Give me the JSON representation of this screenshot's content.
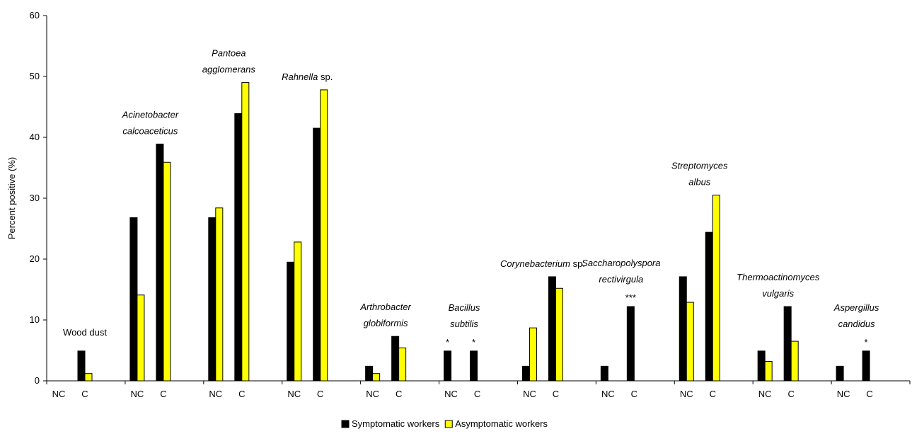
{
  "chart_data": {
    "type": "bar",
    "ylabel": "Percent positive (%)",
    "ylim": [
      0,
      60
    ],
    "yticks": [
      0,
      10,
      20,
      30,
      40,
      50,
      60
    ],
    "grid": false,
    "legend_position": "bottom",
    "colors": {
      "symptomatic": "#000000",
      "asymptomatic": "#ffff00"
    },
    "legend": [
      {
        "key": "symptomatic",
        "label": "Symptomatic workers"
      },
      {
        "key": "asymptomatic",
        "label": "Asymptomatic workers"
      }
    ],
    "series_names": [
      "Symptomatic workers",
      "Asymptomatic workers"
    ],
    "groups": [
      {
        "label": [
          {
            "text": "Wood dust",
            "italic": false
          }
        ],
        "label_anchor": "C",
        "NC": {
          "symptomatic": 0,
          "asymptomatic": 0,
          "star": ""
        },
        "C": {
          "symptomatic": 4.9,
          "asymptomatic": 1.2,
          "star": ""
        }
      },
      {
        "label": [
          {
            "text": "Acinetobacter",
            "italic": true
          },
          {
            "text": "calcoaceticus",
            "italic": true
          }
        ],
        "label_anchor": "mid",
        "NC": {
          "symptomatic": 26.8,
          "asymptomatic": 14.1,
          "star": ""
        },
        "C": {
          "symptomatic": 38.9,
          "asymptomatic": 35.9,
          "star": ""
        }
      },
      {
        "label": [
          {
            "text": "Pantoea",
            "italic": true
          },
          {
            "text": "agglomerans",
            "italic": true
          }
        ],
        "label_anchor": "mid",
        "NC": {
          "symptomatic": 26.8,
          "asymptomatic": 28.4,
          "star": ""
        },
        "C": {
          "symptomatic": 43.9,
          "asymptomatic": 49.0,
          "star": ""
        }
      },
      {
        "label": [
          {
            "text": "Rahnella",
            "italic": true,
            "suffix": " sp."
          }
        ],
        "label_anchor": "mid",
        "NC": {
          "symptomatic": 19.5,
          "asymptomatic": 22.8,
          "star": ""
        },
        "C": {
          "symptomatic": 41.5,
          "asymptomatic": 47.8,
          "star": ""
        }
      },
      {
        "label": [
          {
            "text": "Arthrobacter",
            "italic": true
          },
          {
            "text": "globiformis",
            "italic": true
          }
        ],
        "label_anchor": "mid",
        "NC": {
          "symptomatic": 2.4,
          "asymptomatic": 1.2,
          "star": ""
        },
        "C": {
          "symptomatic": 7.3,
          "asymptomatic": 5.4,
          "star": ""
        }
      },
      {
        "label": [
          {
            "text": "Bacillus",
            "italic": true
          },
          {
            "text": "subtilis",
            "italic": true
          }
        ],
        "label_anchor": "mid",
        "NC": {
          "symptomatic": 4.9,
          "asymptomatic": 0,
          "star": "*"
        },
        "C": {
          "symptomatic": 4.9,
          "asymptomatic": 0,
          "star": "*"
        }
      },
      {
        "label": [
          {
            "text": "Corynebacterium",
            "italic": true,
            "suffix": " sp."
          }
        ],
        "label_anchor": "mid",
        "NC": {
          "symptomatic": 2.4,
          "asymptomatic": 8.7,
          "star": ""
        },
        "C": {
          "symptomatic": 17.1,
          "asymptomatic": 15.2,
          "star": ""
        }
      },
      {
        "label": [
          {
            "text": "Saccharopolyspora",
            "italic": true
          },
          {
            "text": "rectivirgula",
            "italic": true
          }
        ],
        "label_anchor": "mid",
        "NC": {
          "symptomatic": 2.4,
          "asymptomatic": 0,
          "star": ""
        },
        "C": {
          "symptomatic": 12.2,
          "asymptomatic": 0,
          "star": "***"
        }
      },
      {
        "label": [
          {
            "text": "Streptomyces",
            "italic": true
          },
          {
            "text": "albus",
            "italic": true
          }
        ],
        "label_anchor": "mid",
        "NC": {
          "symptomatic": 17.1,
          "asymptomatic": 12.9,
          "star": ""
        },
        "C": {
          "symptomatic": 24.4,
          "asymptomatic": 30.5,
          "star": ""
        }
      },
      {
        "label": [
          {
            "text": "Thermoactinomyces",
            "italic": true
          },
          {
            "text": "vulgaris",
            "italic": true
          }
        ],
        "label_anchor": "mid",
        "NC": {
          "symptomatic": 4.9,
          "asymptomatic": 3.2,
          "star": ""
        },
        "C": {
          "symptomatic": 12.2,
          "asymptomatic": 6.5,
          "star": ""
        }
      },
      {
        "label": [
          {
            "text": "Aspergillus",
            "italic": true
          },
          {
            "text": "candidus",
            "italic": true
          }
        ],
        "label_anchor": "mid",
        "NC": {
          "symptomatic": 2.4,
          "asymptomatic": 0,
          "star": ""
        },
        "C": {
          "symptomatic": 4.9,
          "asymptomatic": 0,
          "star": "*"
        }
      }
    ],
    "category_labels": {
      "NC": "NC",
      "C": "C"
    }
  }
}
